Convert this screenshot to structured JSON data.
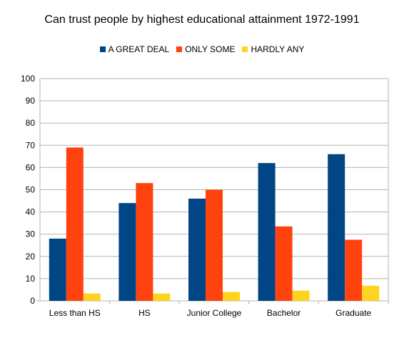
{
  "chart_data": {
    "type": "bar",
    "title": "Can trust people by highest educational attainment 1972-1991",
    "categories": [
      "Less than HS",
      "HS",
      "Junior College",
      "Bachelor",
      "Graduate"
    ],
    "series": [
      {
        "name": "A GREAT DEAL",
        "color": "#004586",
        "values": [
          28,
          44,
          46,
          62,
          66
        ]
      },
      {
        "name": "ONLY SOME",
        "color": "#ff420e",
        "values": [
          69,
          53,
          50,
          33.5,
          27.5
        ]
      },
      {
        "name": "HARDLY ANY",
        "color": "#ffd320",
        "values": [
          3.3,
          3.3,
          4,
          4.6,
          6.8
        ]
      }
    ],
    "ylim": [
      0,
      100
    ],
    "yticks": [
      0,
      10,
      20,
      30,
      40,
      50,
      60,
      70,
      80,
      90,
      100
    ],
    "grid": true,
    "legend_position": "top"
  }
}
